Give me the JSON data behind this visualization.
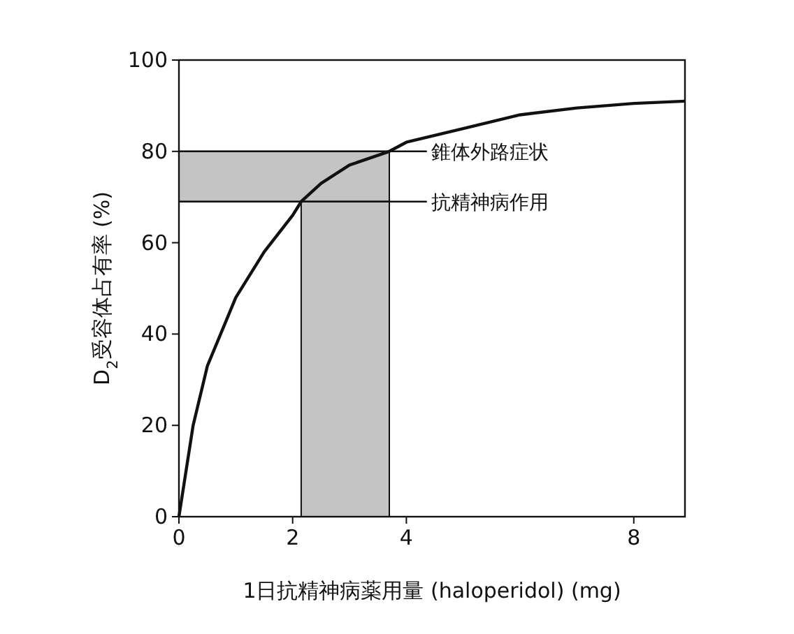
{
  "chart_data": {
    "type": "line",
    "xlabel": "1日抗精神病薬用量 (haloperidol) (mg)",
    "ylabel": "D$_{2}$受容体占有率 (%)",
    "xlim": [
      0,
      8.9
    ],
    "ylim": [
      0,
      100
    ],
    "xticks": [
      0,
      2,
      4,
      8
    ],
    "yticks": [
      0,
      20,
      40,
      60,
      80,
      100
    ],
    "series": [
      {
        "color": "#111111",
        "x": [
          0,
          0.25,
          0.5,
          1,
          1.5,
          2,
          2.15,
          2.5,
          3,
          3.7,
          4,
          5,
          6,
          7,
          8,
          8.9
        ],
        "values": [
          0,
          20,
          33,
          48,
          58,
          66,
          69,
          73,
          77,
          80,
          82,
          85,
          88,
          89.5,
          90.5,
          91
        ]
      }
    ],
    "bands": [
      {
        "axis": "y",
        "from": 69,
        "to": 80,
        "color": "#c4c4c4"
      },
      {
        "axis": "x",
        "from": 2.15,
        "to": 3.7,
        "color": "#c4c4c4"
      }
    ],
    "ref_lines": [
      {
        "axis": "y",
        "value": 80,
        "label": "錐体外路症状"
      },
      {
        "axis": "y",
        "value": 69,
        "label": "抗精神病作用"
      }
    ],
    "marker": "none",
    "line_style": "solid"
  }
}
